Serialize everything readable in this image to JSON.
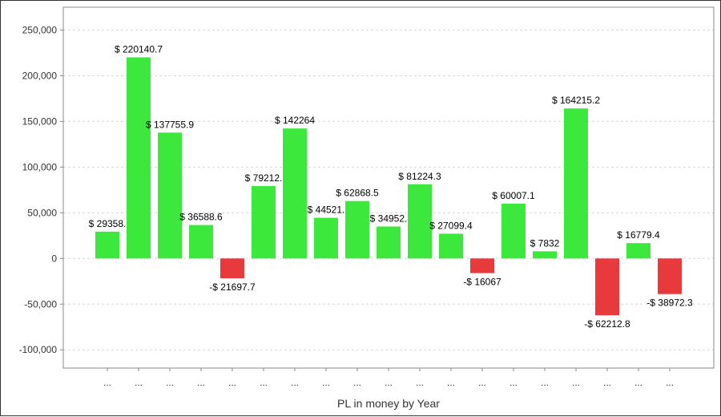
{
  "chart_data": {
    "type": "bar",
    "title": "",
    "xlabel": "PL in money by Year",
    "ylabel": "",
    "ylim": [
      -120000,
      275000
    ],
    "yticks": [
      -100000,
      -50000,
      0,
      50000,
      100000,
      150000,
      200000,
      250000
    ],
    "ytick_labels": [
      "-100,000",
      "-50,000",
      "0",
      "50,000",
      "100,000",
      "150,000",
      "200,000",
      "250,000"
    ],
    "grid": true,
    "legend": "none",
    "categories": [
      "...",
      "...",
      "...",
      "...",
      "...",
      "...",
      "...",
      "...",
      "...",
      "...",
      "...",
      "...",
      "...",
      "...",
      "...",
      "...",
      "...",
      "...",
      "..."
    ],
    "values": [
      29358.4,
      220140.7,
      137755.9,
      36588.6,
      -21697.7,
      79212,
      142264,
      44521,
      62868.5,
      34952,
      81224.3,
      27099.4,
      -16067,
      60007.1,
      7832,
      164215.2,
      -62212.8,
      16779.4,
      -38972.3
    ],
    "data_labels": [
      "$ 29358.",
      "$ 220140.7",
      "$ 137755.9",
      "$ 36588.6",
      "-$ 21697.7",
      "$ 79212.",
      "$ 142264",
      "$ 44521.",
      "$ 62868.5",
      "$ 34952.",
      "$ 81224.3",
      "$ 27099.4",
      "-$ 16067",
      "$ 60007.1",
      "$ 7832",
      "$ 164215.2",
      "-$ 62212.8",
      "$ 16779.4",
      "-$ 38972.3"
    ],
    "colors": {
      "positive": "#3de83d",
      "negative": "#e8393c",
      "grid": "#d8d8d8",
      "axis": "#888888"
    }
  }
}
